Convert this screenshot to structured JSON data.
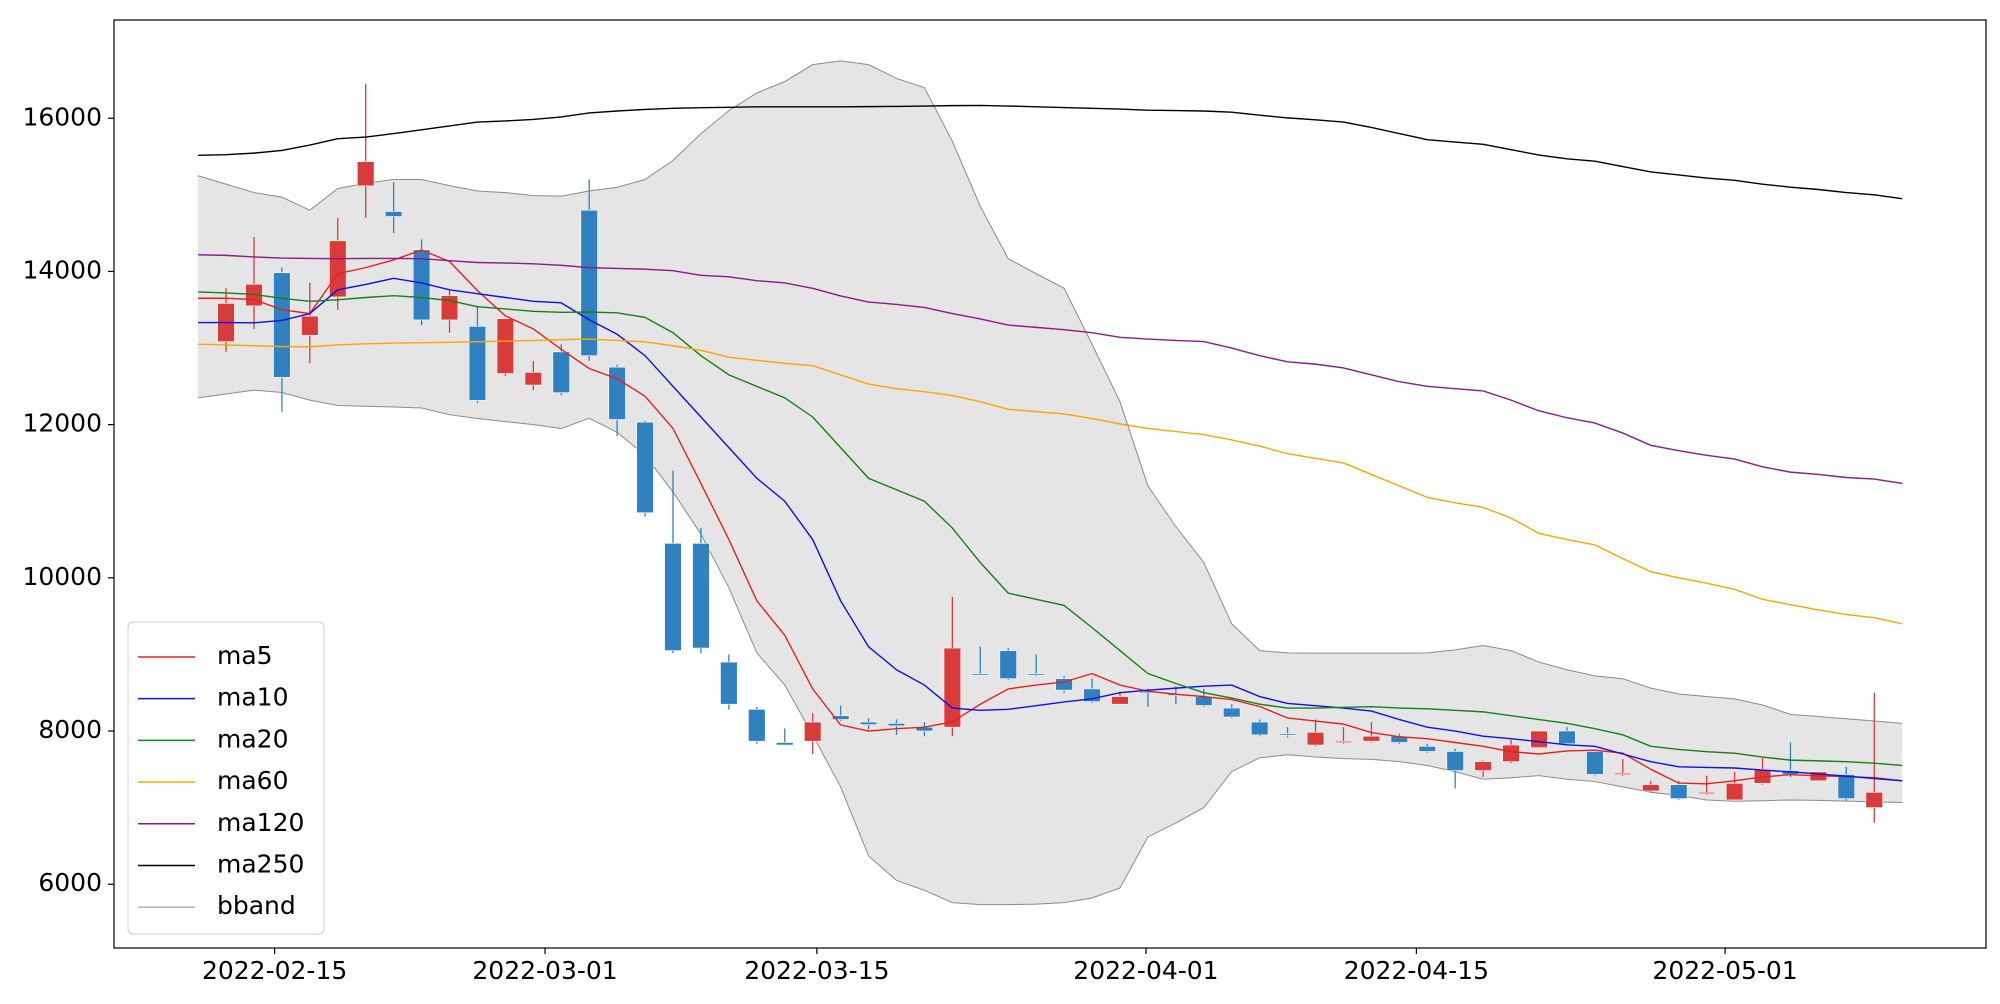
{
  "chart_data": {
    "type": "candlestick",
    "x": [
      0,
      1,
      2,
      3,
      4,
      5,
      6,
      7,
      8,
      9,
      10,
      11,
      12,
      13,
      14,
      15,
      16,
      17,
      18,
      19,
      20,
      21,
      22,
      23,
      24,
      25,
      26,
      27,
      28,
      29,
      30,
      31,
      32,
      33,
      34,
      35,
      36,
      37,
      38,
      39,
      40,
      41,
      42,
      43,
      44,
      45,
      46,
      47,
      48,
      49,
      50,
      51,
      52,
      53,
      54,
      55,
      56,
      57,
      58,
      59,
      60,
      61
    ],
    "xlim": [
      -3.01,
      64.0
    ],
    "xticks": [
      {
        "value": 2.74,
        "label": "2022-02-15"
      },
      {
        "value": 12.42,
        "label": "2022-03-01"
      },
      {
        "value": 22.15,
        "label": "2022-03-15"
      },
      {
        "value": 33.93,
        "label": "2022-04-01"
      },
      {
        "value": 43.61,
        "label": "2022-04-15"
      },
      {
        "value": 54.66,
        "label": "2022-05-01"
      }
    ],
    "ylim": [
      5167,
      17283
    ],
    "yticks": [
      6000,
      8000,
      10000,
      12000,
      14000,
      16000
    ],
    "up_color": "#d93a3a",
    "down_color": "#3081bf",
    "candles": {
      "open": [
        null,
        13083,
        13550,
        13983,
        13167,
        13667,
        15117,
        14783,
        14283,
        13367,
        13283,
        12667,
        12517,
        12950,
        14800,
        12750,
        12033,
        10450,
        10450,
        8900,
        8283,
        7850,
        7867,
        8200,
        8117,
        8100,
        8050,
        8050,
        8750,
        9050,
        8750,
        8683,
        8550,
        8350,
        8517,
        8483,
        8450,
        8300,
        8117,
        7967,
        7817,
        7850,
        7867,
        7933,
        7800,
        7733,
        7483,
        7600,
        7783,
        8000,
        7733,
        7433,
        7217,
        7300,
        7183,
        7100,
        7317,
        7483,
        7350,
        7433,
        7000,
        null
      ],
      "high": [
        null,
        13783,
        14450,
        14050,
        13850,
        14700,
        16450,
        15167,
        14417,
        13750,
        13550,
        13383,
        12833,
        13050,
        15200,
        12783,
        12050,
        11400,
        10650,
        9000,
        8317,
        8033,
        8233,
        8333,
        8167,
        8150,
        8117,
        9750,
        9100,
        9083,
        9000,
        8717,
        8683,
        8517,
        8550,
        8583,
        8550,
        8350,
        8150,
        8050,
        8150,
        8050,
        8117,
        7967,
        7833,
        7767,
        7617,
        7883,
        8000,
        8050,
        7750,
        7633,
        7350,
        7350,
        7417,
        7467,
        7650,
        7850,
        7467,
        7533,
        8500,
        null
      ],
      "low": [
        null,
        12950,
        13250,
        12167,
        12800,
        13500,
        14700,
        14500,
        13300,
        13200,
        12283,
        12633,
        12450,
        12383,
        12833,
        11850,
        10800,
        9017,
        9017,
        8283,
        7833,
        7817,
        7700,
        8133,
        8017,
        7950,
        7933,
        7933,
        8733,
        8667,
        8717,
        8500,
        8367,
        8350,
        8317,
        8350,
        8317,
        8167,
        7933,
        7917,
        7800,
        7833,
        7850,
        7833,
        7717,
        7250,
        7400,
        7583,
        7783,
        7817,
        7417,
        7417,
        7200,
        7100,
        7167,
        7100,
        7300,
        7400,
        7350,
        7083,
        6800,
        null
      ],
      "close": [
        null,
        13583,
        13833,
        12617,
        13417,
        14400,
        15433,
        14717,
        13367,
        13683,
        12317,
        13383,
        12683,
        12417,
        12900,
        12067,
        10850,
        9050,
        9083,
        8350,
        7867,
        7817,
        8117,
        8150,
        8083,
        8067,
        8000,
        9083,
        8733,
        8683,
        8733,
        8533,
        8383,
        8450,
        8500,
        8467,
        8333,
        8183,
        7950,
        7950,
        7983,
        7867,
        7933,
        7850,
        7733,
        7483,
        7600,
        7817,
        8000,
        7833,
        7433,
        7450,
        7300,
        7117,
        7200,
        7317,
        7500,
        7433,
        7467,
        7117,
        7200,
        null
      ]
    },
    "series": [
      {
        "name": "ma5",
        "color": "#e8201c",
        "values": [
          13650,
          13650,
          13633,
          13500,
          13450,
          13970,
          14050,
          14150,
          14280,
          14130,
          13750,
          13420,
          13250,
          12983,
          12733,
          12600,
          12370,
          11950,
          11230,
          10500,
          9700,
          9250,
          8550,
          8080,
          8000,
          8030,
          8050,
          8120,
          8350,
          8550,
          8600,
          8640,
          8750,
          8600,
          8520,
          8480,
          8450,
          8410,
          8320,
          8170,
          8130,
          8090,
          7980,
          7925,
          7900,
          7850,
          7800,
          7730,
          7700,
          7740,
          7750,
          7710,
          7500,
          7320,
          7310,
          7350,
          7400,
          7430,
          7415,
          7405,
          7390,
          7350
        ]
      },
      {
        "name": "ma10",
        "color": "#1010e8",
        "values": [
          13333,
          13333,
          13330,
          13360,
          13450,
          13760,
          13830,
          13910,
          13850,
          13760,
          13710,
          13660,
          13610,
          13590,
          13370,
          13180,
          12900,
          12500,
          12100,
          11700,
          11300,
          11000,
          10500,
          9700,
          9100,
          8800,
          8600,
          8300,
          8270,
          8283,
          8330,
          8380,
          8420,
          8500,
          8533,
          8560,
          8585,
          8600,
          8450,
          8360,
          8330,
          8300,
          8260,
          8150,
          8050,
          8000,
          7933,
          7900,
          7860,
          7820,
          7800,
          7700,
          7600,
          7533,
          7525,
          7517,
          7490,
          7467,
          7440,
          7410,
          7380,
          7350
        ]
      },
      {
        "name": "ma20",
        "color": "#148214",
        "values": [
          13733,
          13720,
          13700,
          13650,
          13610,
          13630,
          13660,
          13683,
          13660,
          13620,
          13540,
          13510,
          13480,
          13467,
          13470,
          13460,
          13400,
          13200,
          12900,
          12650,
          12500,
          12350,
          12100,
          11700,
          11300,
          11150,
          11000,
          10650,
          10200,
          9800,
          9720,
          9640,
          9350,
          9050,
          8750,
          8620,
          8500,
          8430,
          8350,
          8300,
          8300,
          8310,
          8317,
          8300,
          8290,
          8270,
          8250,
          8200,
          8150,
          8100,
          8030,
          7950,
          7800,
          7760,
          7730,
          7710,
          7660,
          7620,
          7610,
          7600,
          7580,
          7550
        ]
      },
      {
        "name": "ma60",
        "color": "#ffa500",
        "values": [
          13050,
          13040,
          13030,
          13020,
          13017,
          13040,
          13055,
          13065,
          13070,
          13075,
          13083,
          13090,
          13100,
          13110,
          13117,
          13100,
          13080,
          13030,
          12970,
          12880,
          12840,
          12800,
          12770,
          12650,
          12530,
          12470,
          12430,
          12380,
          12300,
          12200,
          12170,
          12140,
          12080,
          12010,
          11950,
          11910,
          11870,
          11800,
          11720,
          11620,
          11560,
          11500,
          11350,
          11200,
          11050,
          10980,
          10920,
          10780,
          10580,
          10500,
          10430,
          10250,
          10080,
          10000,
          9930,
          9850,
          9720,
          9650,
          9580,
          9520,
          9480,
          9400
        ]
      },
      {
        "name": "ma120",
        "color": "#8b1a8b",
        "values": [
          14217,
          14210,
          14190,
          14175,
          14170,
          14167,
          14170,
          14170,
          14167,
          14140,
          14117,
          14110,
          14100,
          14080,
          14050,
          14040,
          14030,
          14010,
          13950,
          13930,
          13880,
          13850,
          13780,
          13680,
          13600,
          13570,
          13530,
          13450,
          13380,
          13300,
          13270,
          13240,
          13200,
          13140,
          13117,
          13100,
          13085,
          13000,
          12900,
          12820,
          12790,
          12740,
          12650,
          12560,
          12500,
          12470,
          12440,
          12320,
          12180,
          12090,
          12020,
          11890,
          11730,
          11660,
          11600,
          11550,
          11450,
          11380,
          11350,
          11310,
          11290,
          11233
        ]
      },
      {
        "name": "ma250",
        "color": "#000000",
        "values": [
          15517,
          15525,
          15545,
          15580,
          15650,
          15733,
          15755,
          15800,
          15850,
          15900,
          15950,
          15965,
          15985,
          16017,
          16070,
          16095,
          16115,
          16130,
          16138,
          16143,
          16150,
          16150,
          16150,
          16150,
          16152,
          16155,
          16160,
          16165,
          16167,
          16160,
          16150,
          16140,
          16130,
          16120,
          16105,
          16100,
          16095,
          16080,
          16040,
          16005,
          15980,
          15950,
          15880,
          15800,
          15720,
          15690,
          15660,
          15590,
          15520,
          15470,
          15440,
          15370,
          15300,
          15260,
          15220,
          15190,
          15140,
          15100,
          15070,
          15030,
          15000,
          14950
        ]
      }
    ],
    "band": {
      "name": "bband",
      "color": "#8c8c8c",
      "fill": "#e5e5e5",
      "upper": [
        15250,
        15140,
        15030,
        14970,
        14800,
        15083,
        15150,
        15200,
        15200,
        15120,
        15050,
        15030,
        14990,
        14983,
        15050,
        15100,
        15200,
        15450,
        15800,
        16100,
        16330,
        16480,
        16700,
        16750,
        16700,
        16520,
        16400,
        15700,
        14850,
        14167,
        13970,
        13780,
        13050,
        12300,
        11200,
        10670,
        10200,
        9400,
        9050,
        9020,
        9017,
        9017,
        9017,
        9017,
        9020,
        9060,
        9117,
        9050,
        8900,
        8800,
        8720,
        8683,
        8560,
        8483,
        8450,
        8420,
        8340,
        8217,
        8190,
        8160,
        8130,
        8100
      ],
      "lower": [
        12350,
        12400,
        12450,
        12420,
        12320,
        12250,
        12240,
        12230,
        12217,
        12130,
        12080,
        12040,
        12000,
        11950,
        12083,
        11900,
        11600,
        11120,
        10570,
        9870,
        9020,
        8600,
        7950,
        7270,
        6370,
        6050,
        5920,
        5760,
        5733,
        5733,
        5740,
        5760,
        5820,
        5950,
        6617,
        6800,
        7000,
        7470,
        7650,
        7690,
        7660,
        7640,
        7630,
        7600,
        7550,
        7470,
        7370,
        7390,
        7417,
        7370,
        7340,
        7270,
        7200,
        7160,
        7100,
        7083,
        7090,
        7100,
        7095,
        7085,
        7075,
        7067
      ]
    },
    "legend": "lower left"
  }
}
